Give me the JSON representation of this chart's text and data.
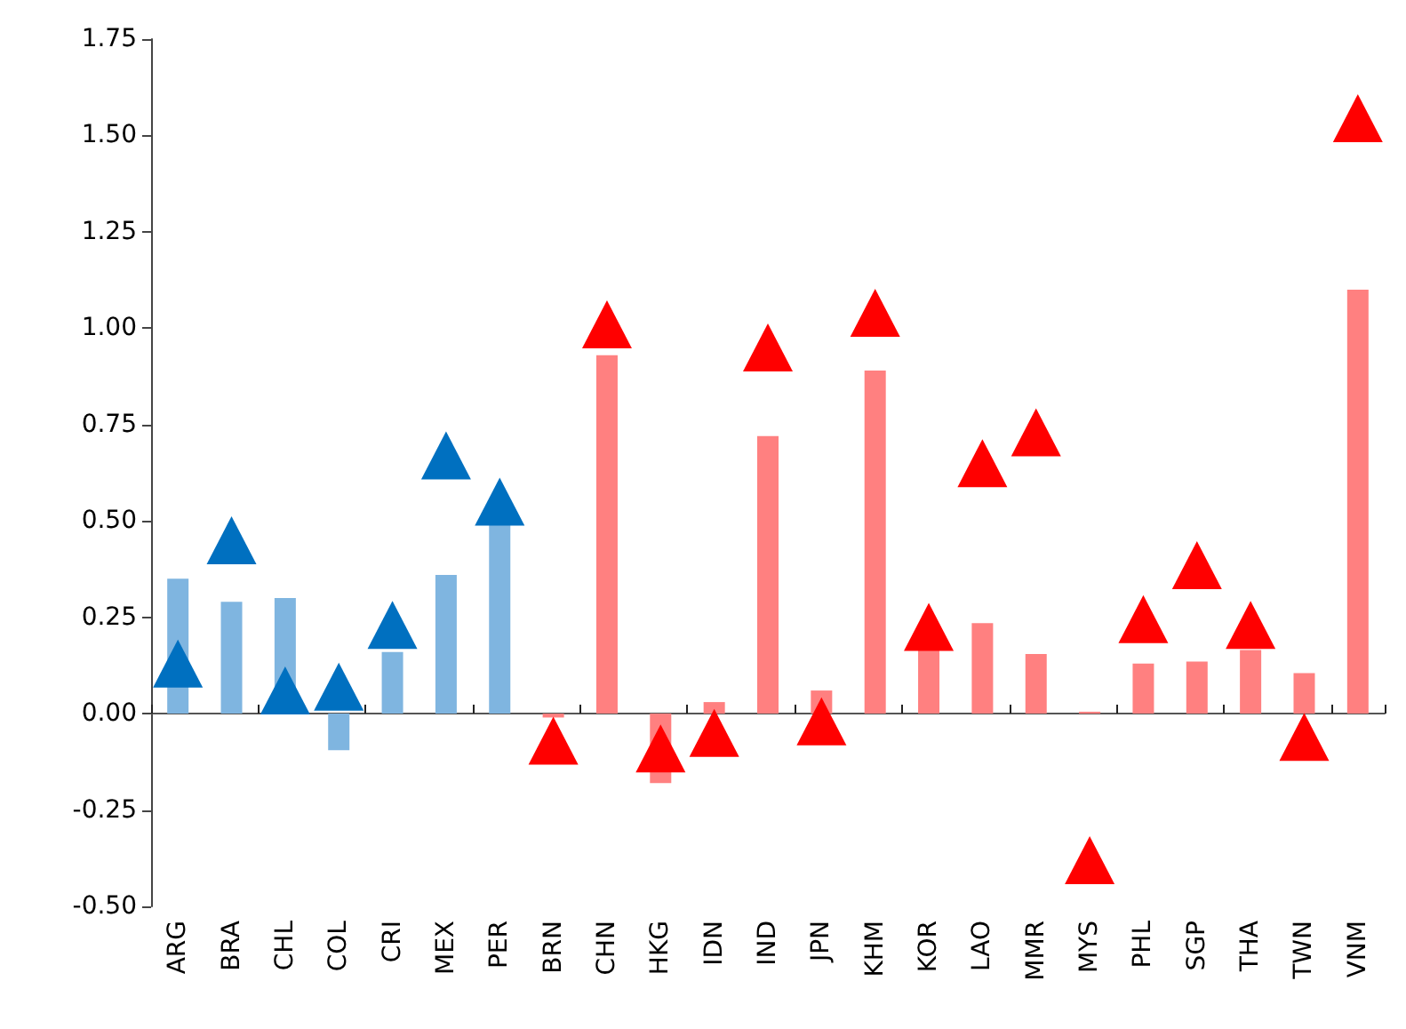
{
  "chart_data": {
    "type": "bar",
    "categories": [
      "ARG",
      "BRA",
      "CHL",
      "COL",
      "CRI",
      "MEX",
      "PER",
      "BRN",
      "CHN",
      "HKG",
      "IDN",
      "IND",
      "JPN",
      "KHM",
      "KOR",
      "LAO",
      "MMR",
      "MYS",
      "PHL",
      "SGP",
      "THA",
      "TWN",
      "VNM"
    ],
    "series": [
      {
        "colors": [
          "#7fb5e0",
          "#7fb5e0",
          "#7fb5e0",
          "#7fb5e0",
          "#7fb5e0",
          "#7fb5e0",
          "#7fb5e0",
          "#ff8080",
          "#ff8080",
          "#ff8080",
          "#ff8080",
          "#ff8080",
          "#ff8080",
          "#ff8080",
          "#ff8080",
          "#ff8080",
          "#ff8080",
          "#ff8080",
          "#ff8080",
          "#ff8080",
          "#ff8080",
          "#ff8080",
          "#ff8080"
        ],
        "values": [
          0.35,
          0.29,
          0.3,
          -0.095,
          0.16,
          0.36,
          0.49,
          -0.01,
          0.93,
          -0.18,
          0.03,
          0.72,
          0.06,
          0.89,
          0.17,
          0.235,
          0.155,
          0.005,
          0.13,
          0.135,
          0.165,
          0.105,
          1.1
        ]
      },
      {
        "type": "scatter",
        "marker": "triangle",
        "colors": [
          "#0070c0",
          "#0070c0",
          "#0070c0",
          "#0070c0",
          "#0070c0",
          "#0070c0",
          "#0070c0",
          "#ff0000",
          "#ff0000",
          "#ff0000",
          "#ff0000",
          "#ff0000",
          "#ff0000",
          "#ff0000",
          "#ff0000",
          "#ff0000",
          "#ff0000",
          "#ff0000",
          "#ff0000",
          "#ff0000",
          "#ff0000",
          "#ff0000",
          "#ff0000"
        ],
        "values": [
          0.13,
          0.45,
          0.06,
          0.07,
          0.23,
          0.67,
          0.55,
          -0.07,
          1.01,
          -0.09,
          -0.05,
          0.95,
          -0.02,
          1.04,
          0.225,
          0.65,
          0.73,
          -0.38,
          0.245,
          0.385,
          0.23,
          -0.06,
          1.545
        ]
      }
    ],
    "ylim": [
      -0.5,
      1.75
    ],
    "yticks": [
      {
        "value": -0.5,
        "label": "-0.50"
      },
      {
        "value": -0.25,
        "label": "-0.25"
      },
      {
        "value": 0,
        "label": "0.00"
      },
      {
        "value": 0.25,
        "label": "0.25"
      },
      {
        "value": 0.5,
        "label": "0.50"
      },
      {
        "value": 0.75,
        "label": "0.75"
      },
      {
        "value": 1,
        "label": "1.00"
      },
      {
        "value": 1.25,
        "label": "1.25"
      },
      {
        "value": 1.5,
        "label": "1.50"
      },
      {
        "value": 1.75,
        "label": "1.75"
      }
    ]
  }
}
